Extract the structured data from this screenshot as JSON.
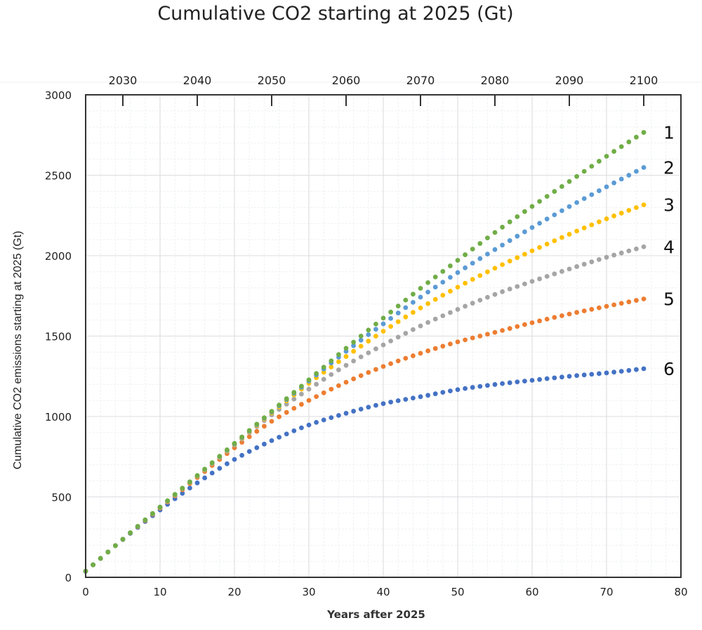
{
  "chart_data": {
    "type": "scatter",
    "title": "Cumulative CO2 starting at 2025 (Gt)",
    "xlabel": "Years after 2025",
    "ylabel": "Cumulative CO2 emissions starting at 2025 (Gt)",
    "xlim": [
      0,
      80
    ],
    "ylim": [
      0,
      3000
    ],
    "x_ticks": [
      "0",
      "10",
      "20",
      "30",
      "40",
      "50",
      "60",
      "70",
      "80"
    ],
    "y_ticks": [
      "0",
      "500",
      "1000",
      "1500",
      "2000",
      "2500",
      "3000"
    ],
    "top_axis_ticks": [
      "2030",
      "2040",
      "2050",
      "2060",
      "2070",
      "2080",
      "2090",
      "2100"
    ],
    "top_axis_tick_x": [
      5,
      15,
      25,
      35,
      45,
      55,
      65,
      75
    ],
    "grid": true,
    "marker": "dot",
    "x": [
      0,
      5,
      10,
      15,
      20,
      25,
      30,
      35,
      40,
      45,
      50,
      55,
      60,
      65,
      70,
      75
    ],
    "series": [
      {
        "name": "1",
        "color": "#70ad47",
        "values": [
          38,
          237,
          437,
          633,
          833,
          1032,
          1228,
          1424,
          1612,
          1797,
          1971,
          2144,
          2306,
          2461,
          2618,
          2766
        ]
      },
      {
        "name": "2",
        "color": "#5b9bd5",
        "values": [
          38,
          237,
          436,
          632,
          830,
          1028,
          1220,
          1405,
          1576,
          1742,
          1895,
          2038,
          2175,
          2305,
          2428,
          2548
        ]
      },
      {
        "name": "3",
        "color": "#ffc000",
        "values": [
          38,
          237,
          435,
          630,
          827,
          1022,
          1206,
          1373,
          1530,
          1675,
          1804,
          1922,
          2030,
          2133,
          2229,
          2316
        ]
      },
      {
        "name": "4",
        "color": "#a5a5a5",
        "values": [
          38,
          237,
          434,
          628,
          822,
          1010,
          1170,
          1318,
          1445,
          1563,
          1666,
          1759,
          1840,
          1917,
          1990,
          2055
        ]
      },
      {
        "name": "5",
        "color": "#ed7d31",
        "values": [
          38,
          236,
          430,
          620,
          805,
          970,
          1100,
          1213,
          1311,
          1393,
          1464,
          1523,
          1583,
          1637,
          1685,
          1731
        ]
      },
      {
        "name": "6",
        "color": "#4472c4",
        "values": [
          38,
          235,
          419,
          587,
          733,
          850,
          947,
          1020,
          1080,
          1123,
          1167,
          1199,
          1225,
          1250,
          1271,
          1297
        ]
      }
    ]
  }
}
